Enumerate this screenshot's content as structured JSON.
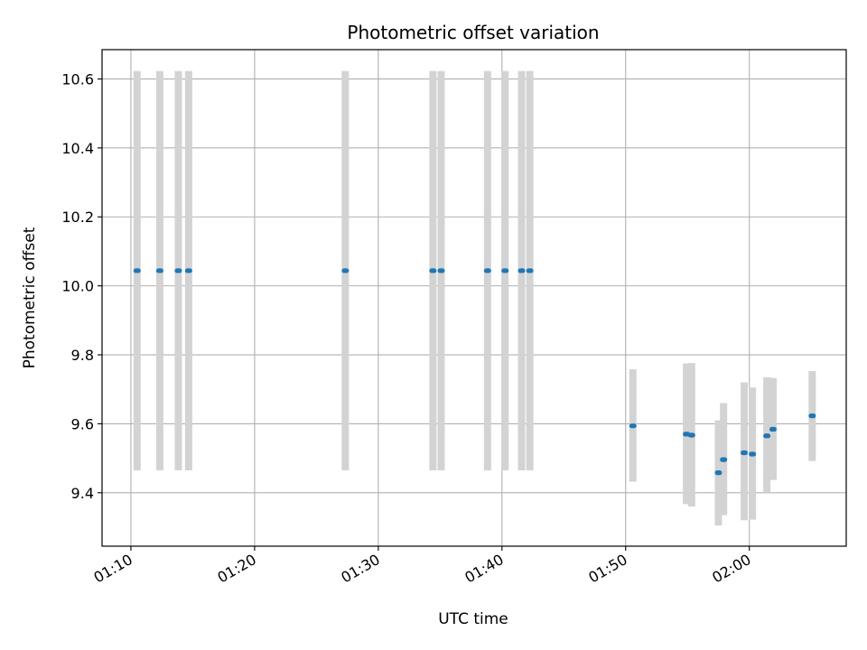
{
  "chart_data": {
    "type": "scatter",
    "title": "Photometric offset variation",
    "xlabel": "UTC time",
    "ylabel": "Photometric offset",
    "grid": true,
    "xlim": [
      "01:07:40",
      "02:07:50"
    ],
    "ylim": [
      9.245,
      10.685
    ],
    "x_ticks": [
      "01:10",
      "01:20",
      "01:30",
      "01:40",
      "01:50",
      "02:00"
    ],
    "y_ticks": [
      "9.4",
      "9.6",
      "9.8",
      "10.0",
      "10.2",
      "10.4",
      "10.6"
    ],
    "colors": {
      "points": "#1f77b4",
      "errorbars": "#d3d3d3",
      "grid": "#b0b0b0"
    },
    "series": [
      {
        "points": [
          {
            "x": "01:10:30",
            "y": 10.044,
            "ylow": 9.465,
            "yhigh": 10.623
          },
          {
            "x": "01:12:20",
            "y": 10.044,
            "ylow": 9.465,
            "yhigh": 10.623
          },
          {
            "x": "01:13:50",
            "y": 10.044,
            "ylow": 9.465,
            "yhigh": 10.623
          },
          {
            "x": "01:14:40",
            "y": 10.044,
            "ylow": 9.465,
            "yhigh": 10.623
          },
          {
            "x": "01:27:20",
            "y": 10.044,
            "ylow": 9.465,
            "yhigh": 10.623
          },
          {
            "x": "01:34:25",
            "y": 10.044,
            "ylow": 9.465,
            "yhigh": 10.623
          },
          {
            "x": "01:35:05",
            "y": 10.044,
            "ylow": 9.465,
            "yhigh": 10.623
          },
          {
            "x": "01:38:50",
            "y": 10.044,
            "ylow": 9.465,
            "yhigh": 10.623
          },
          {
            "x": "01:40:15",
            "y": 10.044,
            "ylow": 9.465,
            "yhigh": 10.623
          },
          {
            "x": "01:41:35",
            "y": 10.044,
            "ylow": 9.465,
            "yhigh": 10.623
          },
          {
            "x": "01:42:15",
            "y": 10.044,
            "ylow": 9.465,
            "yhigh": 10.623
          },
          {
            "x": "01:50:35",
            "y": 9.594,
            "ylow": 9.432,
            "yhigh": 9.758
          },
          {
            "x": "01:54:55",
            "y": 9.57,
            "ylow": 9.367,
            "yhigh": 9.775
          },
          {
            "x": "01:55:20",
            "y": 9.567,
            "ylow": 9.36,
            "yhigh": 9.776
          },
          {
            "x": "01:57:30",
            "y": 9.458,
            "ylow": 9.305,
            "yhigh": 9.61
          },
          {
            "x": "01:57:55",
            "y": 9.496,
            "ylow": 9.335,
            "yhigh": 9.66
          },
          {
            "x": "01:59:35",
            "y": 9.516,
            "ylow": 9.32,
            "yhigh": 9.72
          },
          {
            "x": "02:00:15",
            "y": 9.512,
            "ylow": 9.322,
            "yhigh": 9.705
          },
          {
            "x": "02:01:25",
            "y": 9.565,
            "ylow": 9.4,
            "yhigh": 9.735
          },
          {
            "x": "02:01:55",
            "y": 9.584,
            "ylow": 9.437,
            "yhigh": 9.733
          },
          {
            "x": "02:05:05",
            "y": 9.623,
            "ylow": 9.492,
            "yhigh": 9.753
          }
        ]
      }
    ]
  }
}
